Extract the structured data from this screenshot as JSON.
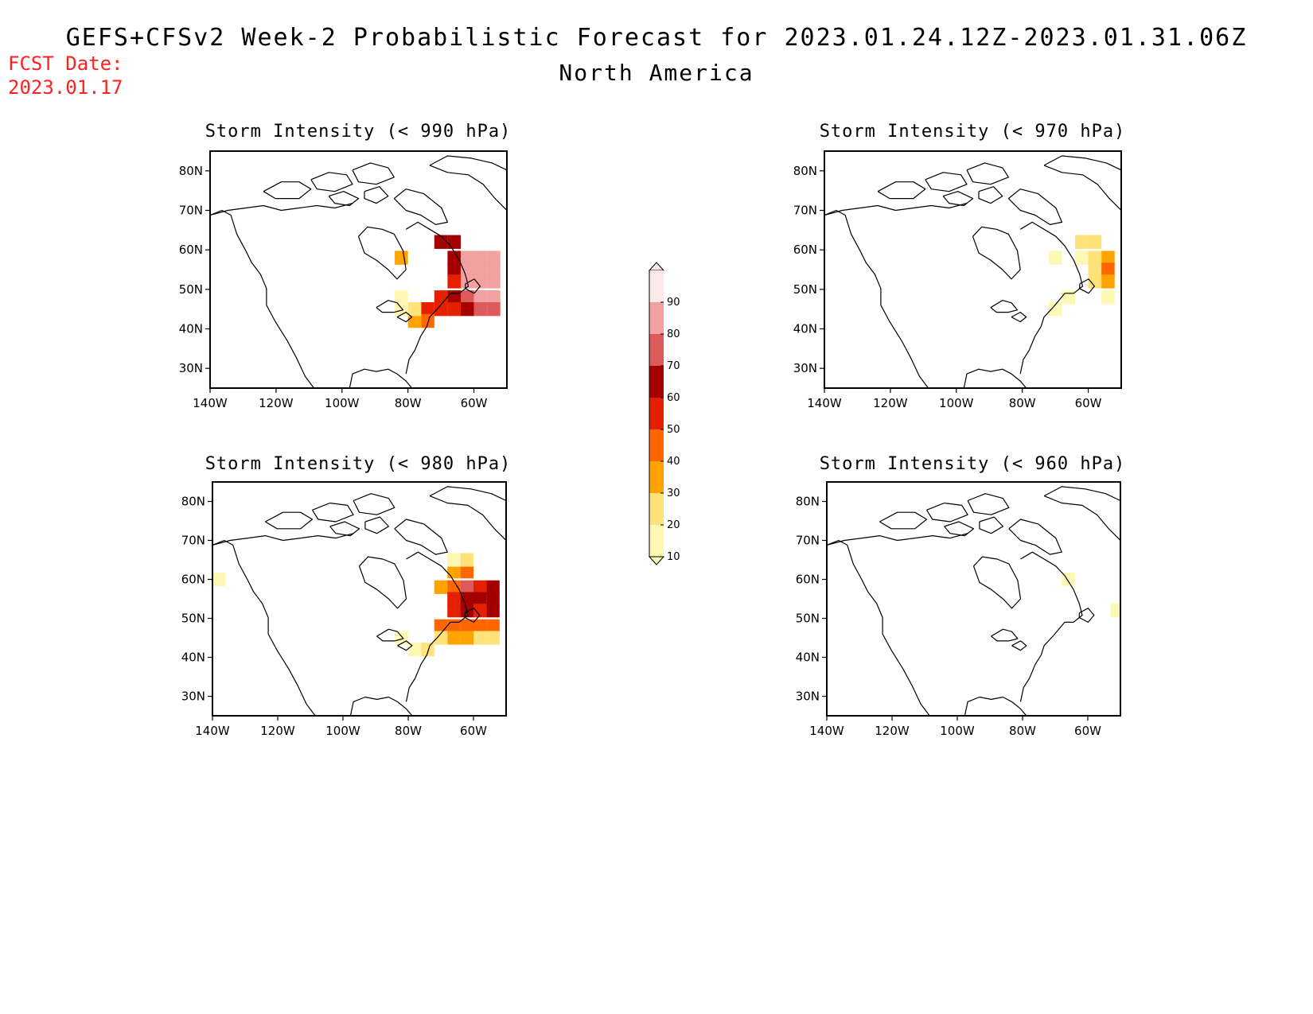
{
  "header": {
    "title": "GEFS+CFSv2 Week-2 Probabilistic Forecast for 2023.01.24.12Z-2023.01.31.06Z",
    "subtitle": "North America",
    "fcst_label": "FCST Date:",
    "fcst_date": "2023.01.17"
  },
  "colorbar": {
    "levels": [
      "10",
      "20",
      "30",
      "40",
      "50",
      "60",
      "70",
      "80",
      "90"
    ],
    "colors": [
      "#fff7b4",
      "#ffe27a",
      "#ffa300",
      "#ff6600",
      "#e42000",
      "#a50000",
      "#dc5a5a",
      "#f2a0a0",
      "#fde8e8"
    ]
  },
  "axes": {
    "lat_labels": [
      "80N",
      "70N",
      "60N",
      "50N",
      "40N",
      "30N"
    ],
    "lon_labels": [
      "140W",
      "120W",
      "100W",
      "80W",
      "60W"
    ],
    "lat_values": [
      80,
      70,
      60,
      50,
      40,
      30
    ],
    "lon_values": [
      -140,
      -120,
      -100,
      -80,
      -60
    ],
    "lon_range": [
      -140,
      -50
    ],
    "lat_range": [
      25,
      85
    ]
  },
  "panels": [
    {
      "id": "p990",
      "title": "Storm Intensity (< 990 hPa)",
      "cells": [
        [
          -66,
          62,
          60
        ],
        [
          -66,
          58,
          65
        ],
        [
          -66,
          55,
          60
        ],
        [
          -66,
          52,
          55
        ],
        [
          -66,
          48,
          60
        ],
        [
          -66,
          45,
          55
        ],
        [
          -62,
          58,
          85
        ],
        [
          -62,
          55,
          85
        ],
        [
          -62,
          52,
          85
        ],
        [
          -62,
          48,
          75
        ],
        [
          -62,
          45,
          60
        ],
        [
          -58,
          58,
          85
        ],
        [
          -58,
          55,
          85
        ],
        [
          -58,
          52,
          85
        ],
        [
          -58,
          48,
          85
        ],
        [
          -58,
          45,
          75
        ],
        [
          -54,
          58,
          85
        ],
        [
          -54,
          55,
          85
        ],
        [
          -54,
          52,
          85
        ],
        [
          -54,
          48,
          85
        ],
        [
          -54,
          45,
          75
        ],
        [
          -70,
          62,
          65
        ],
        [
          -70,
          48,
          55
        ],
        [
          -70,
          45,
          55
        ],
        [
          -74,
          45,
          55
        ],
        [
          -74,
          42,
          45
        ],
        [
          -78,
          42,
          35
        ],
        [
          -78,
          45,
          25
        ],
        [
          -82,
          45,
          15
        ],
        [
          -82,
          58,
          30
        ],
        [
          -82,
          48,
          15
        ]
      ]
    },
    {
      "id": "p970",
      "title": "Storm Intensity (< 970 hPa)",
      "cells": [
        [
          -62,
          62,
          20
        ],
        [
          -62,
          58,
          15
        ],
        [
          -58,
          62,
          25
        ],
        [
          -58,
          58,
          25
        ],
        [
          -58,
          55,
          25
        ],
        [
          -58,
          52,
          20
        ],
        [
          -54,
          58,
          35
        ],
        [
          -54,
          55,
          45
        ],
        [
          -54,
          52,
          30
        ],
        [
          -54,
          48,
          15
        ],
        [
          -66,
          48,
          15
        ],
        [
          -70,
          45,
          15
        ],
        [
          -70,
          58,
          15
        ]
      ]
    },
    {
      "id": "p980",
      "title": "Storm Intensity (< 980 hPa)",
      "cells": [
        [
          -70,
          58,
          35
        ],
        [
          -66,
          62,
          35
        ],
        [
          -66,
          58,
          45
        ],
        [
          -66,
          55,
          50
        ],
        [
          -66,
          52,
          55
        ],
        [
          -62,
          62,
          45
        ],
        [
          -62,
          58,
          75
        ],
        [
          -62,
          55,
          60
        ],
        [
          -62,
          52,
          60
        ],
        [
          -62,
          48,
          45
        ],
        [
          -62,
          45,
          35
        ],
        [
          -58,
          58,
          55
        ],
        [
          -58,
          55,
          60
        ],
        [
          -58,
          52,
          55
        ],
        [
          -58,
          48,
          45
        ],
        [
          -58,
          45,
          25
        ],
        [
          -54,
          58,
          60
        ],
        [
          -54,
          55,
          65
        ],
        [
          -54,
          52,
          60
        ],
        [
          -54,
          48,
          45
        ],
        [
          -54,
          45,
          25
        ],
        [
          -70,
          48,
          40
        ],
        [
          -66,
          48,
          40
        ],
        [
          -66,
          45,
          30
        ],
        [
          -70,
          45,
          25
        ],
        [
          -74,
          42,
          25
        ],
        [
          -78,
          42,
          15
        ],
        [
          -82,
          45,
          15
        ],
        [
          -62,
          65,
          25
        ],
        [
          -66,
          65,
          15
        ],
        [
          -138,
          60,
          15
        ]
      ]
    },
    {
      "id": "p960",
      "title": "Storm Intensity (< 960 hPa)",
      "cells": [
        [
          -66,
          60,
          15
        ],
        [
          -51,
          52,
          15
        ]
      ]
    }
  ]
}
